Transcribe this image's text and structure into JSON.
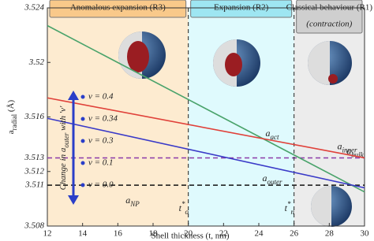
{
  "chart_data": {
    "type": "line",
    "x_label": "Shell thickness (t, nm)",
    "y_label": {
      "main": "a",
      "sub": "radial",
      "unit": " (Å)"
    },
    "xlim": [
      12,
      30
    ],
    "xticks": [
      12,
      14,
      16,
      18,
      20,
      22,
      24,
      26,
      28,
      30
    ],
    "ylim": [
      3.508,
      3.524
    ],
    "yticks": [
      3.508,
      3.512,
      3.516,
      3.52,
      3.524
    ],
    "regions": [
      {
        "x0": 12,
        "x1": 20,
        "label": "Anomalous expansion (R3)",
        "color": "#fdebd0",
        "head": "#f9c98a"
      },
      {
        "x0": 20,
        "x1": 26,
        "label": "Expansion (R2)",
        "color": "#dffafd",
        "head": "#9ee6f2"
      },
      {
        "x0": 26,
        "x1": 30,
        "label": "Classical behaviour (R1)",
        "label2": "(contraction)",
        "color": "#ececec",
        "head": "#cfcfcf"
      }
    ],
    "series": [
      {
        "name": "a",
        "sub": "act",
        "color": "#4aa36b",
        "x": [
          12,
          30
        ],
        "values": [
          3.5227,
          3.5105
        ]
      },
      {
        "name": "a",
        "sub": "inner",
        "color": "#e0413a",
        "x": [
          12,
          30
        ],
        "values": [
          3.5174,
          3.513
        ]
      },
      {
        "name": "a",
        "sub": "outer",
        "color": "#3a3ac8",
        "x": [
          12,
          30
        ],
        "values": [
          3.5159,
          3.5108
        ]
      }
    ],
    "reference_lines": [
      {
        "name": "a",
        "sub": "bulk",
        "value": 3.513,
        "color": "#8b3aa8"
      },
      {
        "name": "a",
        "sub": "NP",
        "value": 3.511,
        "color": "#111111"
      }
    ],
    "markers": [
      {
        "x": 20,
        "name": "t",
        "sub": "o",
        "sup": "*"
      },
      {
        "x": 26,
        "name": "t",
        "sub": "n",
        "sup": "*"
      }
    ],
    "nu_legend": {
      "title": [
        "Change in ",
        "a",
        "outer",
        " with 'ν'"
      ],
      "items": [
        "ν = 0.4",
        "ν = 0.34",
        "ν = 0.3",
        "ν = 0.1",
        "ν = 0.0"
      ],
      "color": "#2a3ec8"
    }
  }
}
